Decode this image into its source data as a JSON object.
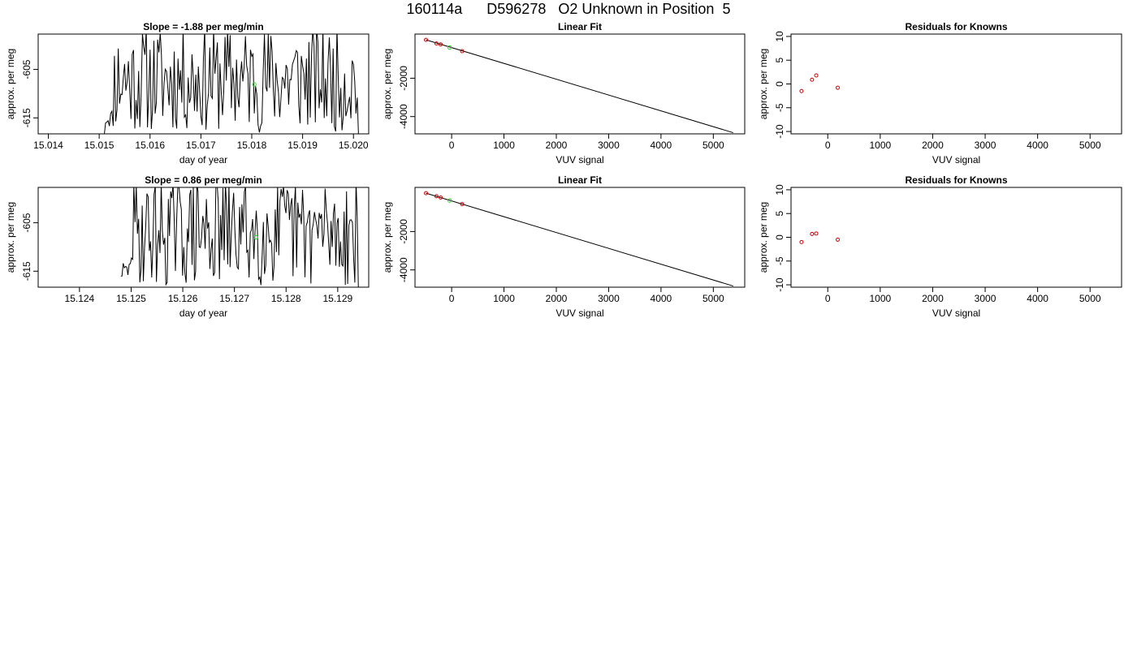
{
  "page": {
    "title": "160114a      D596278   O2 Unknown in Position  5"
  },
  "colors": {
    "line": "#000000",
    "known_point": "#cc0000",
    "unknown_point": "#22dd22",
    "frame": "#000000"
  },
  "chart_data": [
    {
      "id": "timeseries-1",
      "type": "line",
      "title": "Slope =  -1.88  per meg/min",
      "xlabel": "day of year",
      "ylabel": "approx. per meg",
      "xlim": [
        15.0138,
        15.0203
      ],
      "ylim": [
        -618.3,
        -597.7
      ],
      "xticks": [
        "15.014",
        "15.015",
        "15.016",
        "15.017",
        "15.018",
        "15.019",
        "15.020"
      ],
      "yticks": [
        "-605",
        "-615"
      ],
      "series": [
        {
          "x_start": 15.0151,
          "x_end": 15.0201,
          "values_start": -618.5,
          "seed": 11
        }
      ],
      "highlight_point": {
        "x": 15.01805,
        "y": -608.1
      }
    },
    {
      "id": "linearfit-1",
      "type": "scatter",
      "title": "Linear Fit",
      "xlabel": "VUV signal",
      "ylabel": "approx. per meg",
      "xlim": [
        -700,
        5600
      ],
      "ylim": [
        -4900,
        300
      ],
      "xticks": [
        "0",
        "1000",
        "2000",
        "3000",
        "4000",
        "5000"
      ],
      "yticks": [
        "-2000",
        "-4000"
      ],
      "known_points": [
        {
          "x": -490,
          "y": 0
        },
        {
          "x": -290,
          "y": -190
        },
        {
          "x": -210,
          "y": -240
        },
        {
          "x": 200,
          "y": -590
        }
      ],
      "unknown_point": {
        "x": -40,
        "y": -400
      },
      "fit_line": {
        "x0": -490,
        "y0": 0,
        "x1": 5380,
        "y1": -4840
      }
    },
    {
      "id": "residuals-1",
      "type": "scatter",
      "title": "Residuals for Knowns",
      "xlabel": "VUV signal",
      "ylabel": "approx. per meg",
      "xlim": [
        -700,
        5600
      ],
      "ylim": [
        -10.5,
        10.5
      ],
      "xticks": [
        "0",
        "1000",
        "2000",
        "3000",
        "4000",
        "5000"
      ],
      "yticks": [
        "10",
        "5",
        "0",
        "-5",
        "-10"
      ],
      "known_points": [
        {
          "x": -500,
          "y": -1.5
        },
        {
          "x": -300,
          "y": 0.9
        },
        {
          "x": -220,
          "y": 1.8
        },
        {
          "x": 190,
          "y": -0.8
        }
      ]
    },
    {
      "id": "timeseries-2",
      "type": "line",
      "title": "Slope =  0.86  per meg/min",
      "xlabel": "day of year",
      "ylabel": "approx. per meg",
      "xlim": [
        15.1232,
        15.1296
      ],
      "ylim": [
        -618.3,
        -597.7
      ],
      "xticks": [
        "15.124",
        "15.125",
        "15.126",
        "15.127",
        "15.128",
        "15.129"
      ],
      "yticks": [
        "-605",
        "-615"
      ],
      "series": [
        {
          "x_start": 15.1248,
          "x_end": 15.1294,
          "values_start": -616.0,
          "seed": 29
        }
      ],
      "highlight_point": {
        "x": 15.12742,
        "y": -608.0
      }
    },
    {
      "id": "linearfit-2",
      "type": "scatter",
      "title": "Linear Fit",
      "xlabel": "VUV signal",
      "ylabel": "approx. per meg",
      "xlim": [
        -700,
        5600
      ],
      "ylim": [
        -4900,
        300
      ],
      "xticks": [
        "0",
        "1000",
        "2000",
        "3000",
        "4000",
        "5000"
      ],
      "yticks": [
        "-2000",
        "-4000"
      ],
      "known_points": [
        {
          "x": -490,
          "y": 0
        },
        {
          "x": -290,
          "y": -160
        },
        {
          "x": -210,
          "y": -230
        },
        {
          "x": 200,
          "y": -570
        }
      ],
      "unknown_point": {
        "x": -40,
        "y": -380
      },
      "fit_line": {
        "x0": -490,
        "y0": 0,
        "x1": 5380,
        "y1": -4840
      }
    },
    {
      "id": "residuals-2",
      "type": "scatter",
      "title": "Residuals for Knowns",
      "xlabel": "VUV signal",
      "ylabel": "approx. per meg",
      "xlim": [
        -700,
        5600
      ],
      "ylim": [
        -10.5,
        10.5
      ],
      "xticks": [
        "0",
        "1000",
        "2000",
        "3000",
        "4000",
        "5000"
      ],
      "yticks": [
        "10",
        "5",
        "0",
        "-5",
        "-10"
      ],
      "known_points": [
        {
          "x": -500,
          "y": -1.0
        },
        {
          "x": -300,
          "y": 0.7
        },
        {
          "x": -220,
          "y": 0.8
        },
        {
          "x": 190,
          "y": -0.5
        }
      ]
    }
  ]
}
